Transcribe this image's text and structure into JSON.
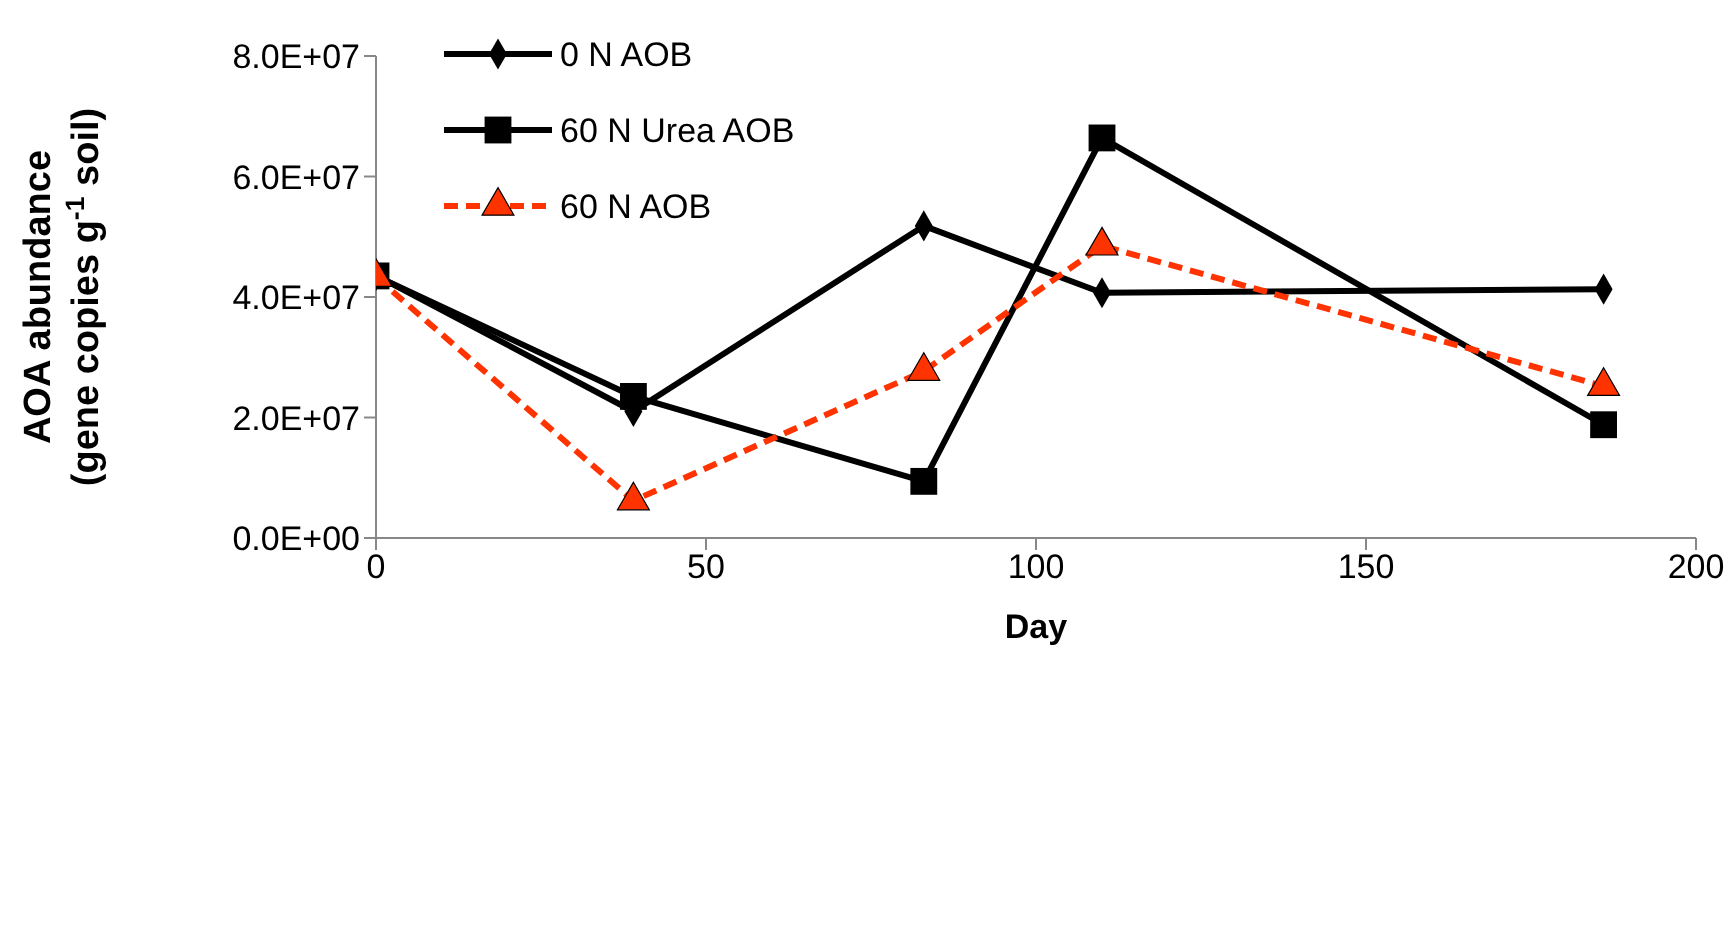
{
  "chart_data": {
    "type": "line",
    "xlabel": "Day",
    "ylabel": "AOA abundance\n(gene copies g$^{-1}$ soil)",
    "x": [
      0,
      39,
      83,
      110,
      186
    ],
    "series": [
      {
        "name": "0 N AOB",
        "color": "#000000",
        "values": [
          43600000.0,
          21000000.0,
          51800000.0,
          40700000.0,
          41300000.0
        ],
        "marker": "diamond",
        "line_style": "solid"
      },
      {
        "name": "60 N Urea AOB",
        "color": "#000000",
        "values": [
          43500000.0,
          23500000.0,
          9400000.0,
          66400000.0,
          18800000.0
        ],
        "marker": "square",
        "line_style": "solid"
      },
      {
        "name": "60 N AOB",
        "color": "#ff3300",
        "values": [
          43300000.0,
          6200000.0,
          27700000.0,
          48500000.0,
          25200000.0
        ],
        "marker": "triangle",
        "line_style": "dashed"
      }
    ],
    "xlim": [
      0,
      200
    ],
    "xticks": [
      0,
      50,
      100,
      150,
      200
    ],
    "ylim": [
      0,
      80000000.0
    ],
    "yticks": [
      {
        "value": 0,
        "label": "0.0E+00"
      },
      {
        "value": 20000000.0,
        "label": "2.0E+07"
      },
      {
        "value": 40000000.0,
        "label": "4.0E+07"
      },
      {
        "value": 60000000.0,
        "label": "6.0E+07"
      },
      {
        "value": 80000000.0,
        "label": "8.0E+07"
      }
    ],
    "grid": false,
    "legend": "top left"
  }
}
